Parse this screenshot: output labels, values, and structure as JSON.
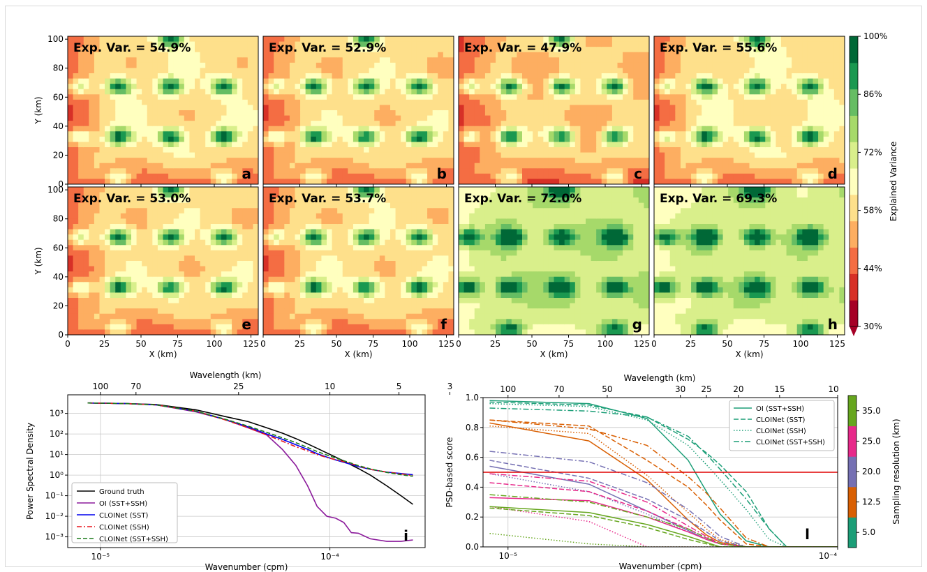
{
  "chart_data": [
    {
      "type": "heatmap",
      "panel_letters": [
        "a",
        "b",
        "c",
        "d",
        "e",
        "f",
        "g",
        "h"
      ],
      "panel_labels": [
        "Exp. Var. = 54.9%",
        "Exp. Var. = 52.9%",
        "Exp. Var. = 47.9%",
        "Exp. Var. = 55.6%",
        "Exp. Var. = 53.0%",
        "Exp. Var. = 53.7%",
        "Exp. Var. = 72.0%",
        "Exp. Var. = 69.3%"
      ],
      "explained_variance": [
        54.9,
        52.9,
        47.9,
        55.6,
        53.0,
        53.7,
        72.0,
        69.3
      ],
      "xlabel": "X (km)",
      "ylabel": "Y (km)",
      "xlim": [
        0,
        130
      ],
      "ylim": [
        0,
        102
      ],
      "xticks": [
        "0",
        "25",
        "50",
        "75",
        "100",
        "125"
      ],
      "yticks": [
        "0",
        "20",
        "40",
        "60",
        "80",
        "100"
      ],
      "colorbar": {
        "label": "Explained Variance",
        "ticks": [
          "30%",
          "44%",
          "58%",
          "72%",
          "86%",
          "100%"
        ],
        "range": [
          30,
          100
        ],
        "colors": [
          "#a50026",
          "#d73027",
          "#f46d43",
          "#fdae61",
          "#fee08b",
          "#ffffbf",
          "#d9ef8b",
          "#a6d96a",
          "#66bd63",
          "#1a9850",
          "#006837"
        ]
      }
    },
    {
      "type": "line",
      "panel_letter": "i",
      "xlabel": "Wavenumber (cpm)",
      "ylabel": "Power Spectral Density",
      "top_xlabel": "Wavelength (km)",
      "top_xticks": [
        "100",
        "70",
        "25",
        "10",
        "5",
        "3"
      ],
      "x_scale": "log",
      "y_scale": "log",
      "xlim": [
        7.2e-06,
        0.00026
      ],
      "ylim": [
        0.0003,
        8000
      ],
      "x": [
        8.8e-06,
        1.3e-05,
        1.75e-05,
        2.6e-05,
        3.5e-05,
        4.4e-05,
        5.3e-05,
        6.2e-05,
        7.1e-05,
        8e-05,
        8.8e-05,
        9.7e-05,
        0.000106,
        0.000115,
        0.000124,
        0.000133,
        0.00015,
        0.000177,
        0.000204,
        0.00023
      ],
      "series": [
        {
          "name": "Ground truth",
          "color": "#000000",
          "dash": "solid",
          "values": [
            3200,
            3000,
            2700,
            1500,
            700,
            400,
            200,
            110,
            60,
            33,
            20,
            12,
            7.5,
            4.8,
            3.1,
            2.1,
            1.0,
            0.3,
            0.1,
            0.038
          ]
        },
        {
          "name": "OI (SST+SSH)",
          "color": "#8b1a9b",
          "dash": "solid",
          "values": [
            3200,
            3000,
            2600,
            1200,
            500,
            200,
            90,
            18,
            3,
            0.3,
            0.03,
            0.01,
            0.008,
            0.005,
            0.0016,
            0.0015,
            0.0008,
            0.0006,
            0.0006,
            0.0007
          ]
        },
        {
          "name": "CLOINet (SST)",
          "color": "#0000ee",
          "dash": "solid",
          "values": [
            3200,
            3000,
            2600,
            1300,
            500,
            220,
            100,
            55,
            30,
            18,
            11,
            7.5,
            5.5,
            4.2,
            3.3,
            2.6,
            1.9,
            1.4,
            1.2,
            1.05
          ]
        },
        {
          "name": "CLOINet (SSH)",
          "color": "#e8141b",
          "dash": "dashdot",
          "values": [
            3200,
            3000,
            2600,
            1300,
            480,
            200,
            90,
            45,
            24,
            15,
            10,
            7.2,
            5.6,
            4.5,
            3.6,
            2.8,
            1.9,
            1.4,
            1.15,
            0.95
          ]
        },
        {
          "name": "CLOINet (SST+SSH)",
          "color": "#1a7a1a",
          "dash": "dashed",
          "values": [
            3200,
            3000,
            2600,
            1300,
            520,
            240,
            120,
            65,
            38,
            22,
            14,
            9.5,
            6.8,
            5.0,
            3.8,
            2.9,
            2.0,
            1.35,
            1.05,
            0.88
          ]
        }
      ]
    },
    {
      "type": "line",
      "panel_letter": "l",
      "xlabel": "Wavenumber (cpm)",
      "ylabel": "PSD-based score",
      "top_xlabel": "Wavelength (km)",
      "top_xticks": [
        "100",
        "70",
        "50",
        "30",
        "25",
        "20",
        "15",
        "10"
      ],
      "x_scale": "log",
      "xlim": [
        8.4e-06,
        0.0001
      ],
      "ylim": [
        0,
        1
      ],
      "yticks": [
        "0.0",
        "0.2",
        "0.4",
        "0.6",
        "0.8",
        "1.0"
      ],
      "threshold": 0.5,
      "legend_styles": [
        "OI (SST+SSH)",
        "CLOINet (SST)",
        "CLOINet (SSH)",
        "CLOINet (SST+SSH)"
      ],
      "colorbar": {
        "label": "Sampling resolution (km)",
        "ticks": [
          "5.0",
          "12.5",
          "20.0",
          "25.0",
          "35.0"
        ],
        "colors": [
          "#1b9e77",
          "#d95f02",
          "#7570b3",
          "#e7298a",
          "#66a61e"
        ]
      },
      "x": [
        8.8e-06,
        1.76e-05,
        2.64e-05,
        3.52e-05,
        4e-05,
        4.4e-05,
        5.28e-05,
        6.2e-05,
        7e-05,
        0.0001
      ],
      "series": [
        {
          "res": "5.0",
          "color": "#1b9e77",
          "style": "OI (SST+SSH)",
          "values": [
            0.98,
            0.96,
            0.86,
            0.58,
            0.37,
            0.22,
            0.04,
            0.0,
            0.0,
            0.0
          ]
        },
        {
          "res": "5.0",
          "color": "#1b9e77",
          "style": "CLOINet (SST)",
          "values": [
            0.97,
            0.95,
            0.87,
            0.72,
            0.63,
            0.55,
            0.37,
            0.12,
            0.0,
            0.0
          ]
        },
        {
          "res": "5.0",
          "color": "#1b9e77",
          "style": "CLOINet (SSH)",
          "values": [
            0.96,
            0.94,
            0.85,
            0.68,
            0.55,
            0.45,
            0.25,
            0.05,
            0.0,
            0.0
          ]
        },
        {
          "res": "5.0",
          "color": "#1b9e77",
          "style": "CLOINet (SST+SSH)",
          "values": [
            0.93,
            0.91,
            0.87,
            0.74,
            0.62,
            0.52,
            0.32,
            0.12,
            0.0,
            0.0
          ]
        },
        {
          "res": "12.5",
          "color": "#d95f02",
          "style": "OI (SST+SSH)",
          "values": [
            0.83,
            0.71,
            0.45,
            0.18,
            0.08,
            0.03,
            0.0,
            0.0,
            0.0,
            0.0
          ]
        },
        {
          "res": "12.5",
          "color": "#d95f02",
          "style": "CLOINet (SST)",
          "values": [
            0.85,
            0.81,
            0.58,
            0.4,
            0.28,
            0.18,
            0.02,
            0.0,
            0.0,
            0.0
          ]
        },
        {
          "res": "12.5",
          "color": "#d95f02",
          "style": "CLOINet (SSH)",
          "values": [
            0.81,
            0.76,
            0.48,
            0.23,
            0.12,
            0.05,
            0.0,
            0.0,
            0.0,
            0.0
          ]
        },
        {
          "res": "12.5",
          "color": "#d95f02",
          "style": "CLOINet (SST+SSH)",
          "values": [
            0.85,
            0.79,
            0.68,
            0.47,
            0.36,
            0.26,
            0.06,
            0.0,
            0.0,
            0.0
          ]
        },
        {
          "res": "20.0",
          "color": "#7570b3",
          "style": "OI (SST+SSH)",
          "values": [
            0.54,
            0.42,
            0.24,
            0.11,
            0.05,
            0.02,
            0.0,
            0.0,
            0.0,
            0.0
          ]
        },
        {
          "res": "20.0",
          "color": "#7570b3",
          "style": "CLOINet (SST)",
          "values": [
            0.58,
            0.46,
            0.32,
            0.18,
            0.1,
            0.04,
            0.0,
            0.0,
            0.0,
            0.0
          ]
        },
        {
          "res": "20.0",
          "color": "#7570b3",
          "style": "CLOINet (SSH)",
          "values": [
            0.49,
            0.37,
            0.22,
            0.1,
            0.05,
            0.02,
            0.0,
            0.0,
            0.0,
            0.0
          ]
        },
        {
          "res": "20.0",
          "color": "#7570b3",
          "style": "CLOINet (SST+SSH)",
          "values": [
            0.64,
            0.57,
            0.43,
            0.25,
            0.15,
            0.07,
            0.0,
            0.0,
            0.0,
            0.0
          ]
        },
        {
          "res": "25.0",
          "color": "#e7298a",
          "style": "OI (SST+SSH)",
          "values": [
            0.33,
            0.31,
            0.2,
            0.1,
            0.05,
            0.02,
            0.0,
            0.0,
            0.0,
            0.0
          ]
        },
        {
          "res": "25.0",
          "color": "#e7298a",
          "style": "CLOINet (SST)",
          "values": [
            0.43,
            0.37,
            0.24,
            0.12,
            0.06,
            0.02,
            0.0,
            0.0,
            0.0,
            0.0
          ]
        },
        {
          "res": "25.0",
          "color": "#e7298a",
          "style": "CLOINet (SSH)",
          "values": [
            0.27,
            0.17,
            0.0,
            0.0,
            0.0,
            0.0,
            0.0,
            0.0,
            0.0,
            0.0
          ]
        },
        {
          "res": "25.0",
          "color": "#e7298a",
          "style": "CLOINet (SST+SSH)",
          "values": [
            0.49,
            0.44,
            0.3,
            0.14,
            0.07,
            0.02,
            0.0,
            0.0,
            0.0,
            0.0
          ]
        },
        {
          "res": "35.0",
          "color": "#66a61e",
          "style": "OI (SST+SSH)",
          "values": [
            0.27,
            0.23,
            0.15,
            0.07,
            0.03,
            0.0,
            0.0,
            0.0,
            0.0,
            0.0
          ]
        },
        {
          "res": "35.0",
          "color": "#66a61e",
          "style": "CLOINet (SST)",
          "values": [
            0.26,
            0.21,
            0.13,
            0.05,
            0.02,
            0.0,
            0.0,
            0.0,
            0.0,
            0.0
          ]
        },
        {
          "res": "35.0",
          "color": "#66a61e",
          "style": "CLOINet (SSH)",
          "values": [
            0.09,
            0.02,
            0.0,
            0.0,
            0.0,
            0.0,
            0.0,
            0.0,
            0.0,
            0.0
          ]
        },
        {
          "res": "35.0",
          "color": "#66a61e",
          "style": "CLOINet (SST+SSH)",
          "values": [
            0.35,
            0.3,
            0.2,
            0.12,
            0.06,
            0.02,
            0.0,
            0.0,
            0.0,
            0.0
          ]
        }
      ]
    }
  ]
}
